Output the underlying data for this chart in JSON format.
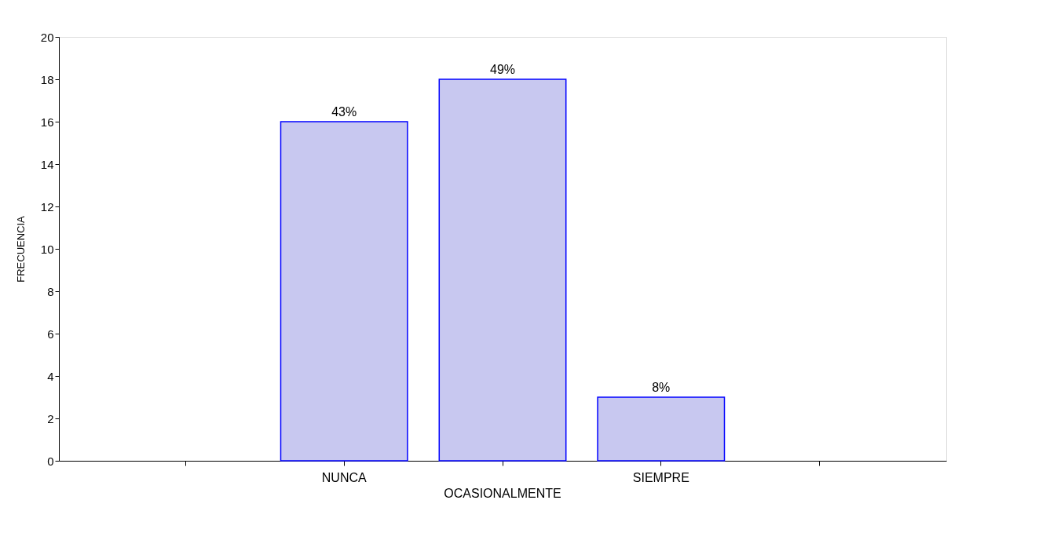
{
  "chart_data": {
    "type": "bar",
    "ylabel": "FRECUENCIA",
    "categories": [
      null,
      "NUNCA",
      "OCASIONALMENTE",
      "SIEMPRE",
      null
    ],
    "values": [
      null,
      16,
      18,
      3,
      null
    ],
    "annotations": [
      {
        "text": "43%",
        "x": "NUNCA",
        "y": 16
      },
      {
        "text": "49%",
        "x": "OCASIONALMENTE",
        "y": 18
      },
      {
        "text": "8%",
        "x": "SIEMPRE",
        "y": 3
      }
    ],
    "color": "#c8c8f0",
    "ylim": [
      0,
      20
    ],
    "yticks": [
      0,
      2,
      4,
      6,
      8,
      10,
      12,
      14,
      16,
      18,
      20
    ],
    "grid": false
  }
}
